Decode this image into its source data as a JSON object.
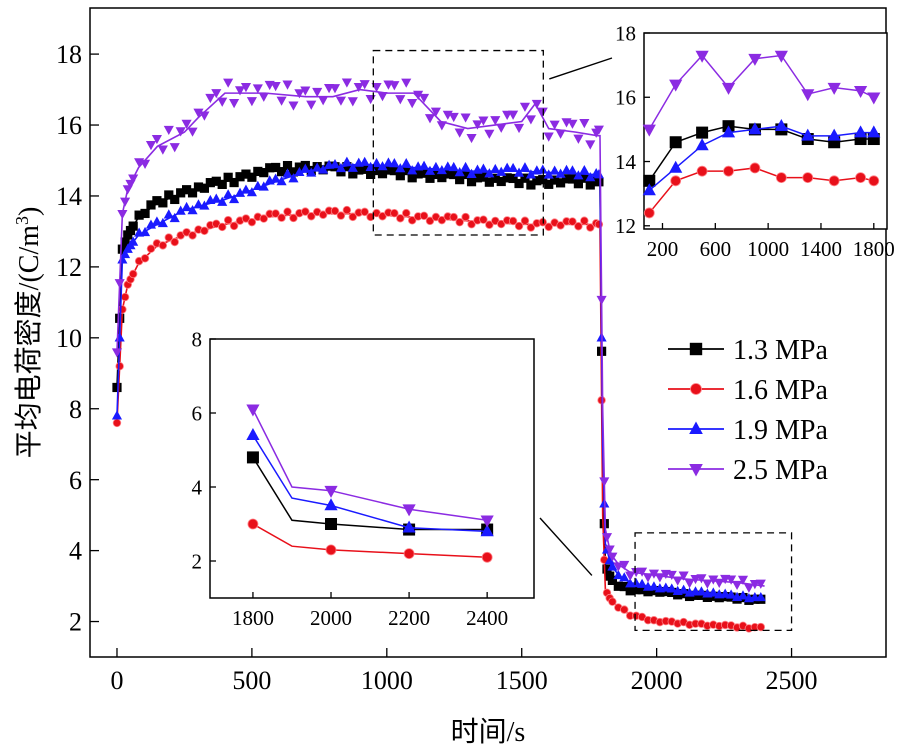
{
  "chart_data": [
    {
      "id": "main",
      "type": "line",
      "xlabel": "时间/s",
      "ylabel_main": "平均电荷密度/(C/m",
      "ylabel_sup": "3",
      "ylabel_close": ")",
      "xlim": [
        -100,
        2850
      ],
      "ylim": [
        1.0,
        19.3
      ],
      "xticks": [
        0,
        500,
        1000,
        1500,
        2000,
        2500
      ],
      "yticks": [
        2,
        4,
        6,
        8,
        10,
        12,
        14,
        16,
        18
      ],
      "legend_position": "right-middle",
      "zoom_boxes": [
        {
          "x": [
            950,
            1580
          ],
          "y": [
            12.9,
            18.1
          ]
        },
        {
          "x": [
            1920,
            2500
          ],
          "y": [
            1.75,
            4.5
          ]
        }
      ],
      "series": [
        {
          "name": "1.3 MPa",
          "color": "#000000",
          "marker": "square",
          "x": [
            0,
            20,
            40,
            80,
            150,
            250,
            400,
            550,
            700,
            900,
            1100,
            1300,
            1500,
            1780,
            1790,
            1800,
            1810,
            1830,
            1860,
            1900,
            2000,
            2100,
            2200,
            2300,
            2400
          ],
          "y": [
            8.6,
            12.5,
            12.9,
            13.4,
            13.8,
            14.1,
            14.4,
            14.7,
            14.8,
            14.7,
            14.6,
            14.5,
            14.4,
            14.4,
            14.3,
            6.5,
            3.6,
            3.2,
            3.0,
            2.9,
            2.85,
            2.75,
            2.7,
            2.65,
            2.6
          ]
        },
        {
          "name": "1.6 MPa",
          "color": "#e8101a",
          "marker": "circle",
          "x": [
            0,
            20,
            40,
            80,
            150,
            250,
            400,
            550,
            700,
            900,
            1100,
            1300,
            1500,
            1780,
            1790,
            1800,
            1810,
            1830,
            1860,
            1900,
            2000,
            2100,
            2200,
            2300,
            2400
          ],
          "y": [
            7.6,
            10.8,
            11.5,
            12.1,
            12.6,
            12.9,
            13.2,
            13.4,
            13.5,
            13.5,
            13.4,
            13.3,
            13.2,
            13.2,
            13.1,
            5.0,
            2.9,
            2.6,
            2.4,
            2.2,
            2.0,
            1.95,
            1.9,
            1.85,
            1.82
          ]
        },
        {
          "name": "1.9 MPa",
          "color": "#1a1aff",
          "marker": "triangle-up",
          "x": [
            0,
            20,
            40,
            80,
            150,
            250,
            400,
            550,
            700,
            900,
            1100,
            1300,
            1500,
            1780,
            1790,
            1800,
            1810,
            1830,
            1860,
            1900,
            2000,
            2100,
            2200,
            2300,
            2400
          ],
          "y": [
            7.8,
            12.2,
            12.5,
            12.9,
            13.2,
            13.6,
            13.9,
            14.3,
            14.7,
            14.9,
            14.8,
            14.7,
            14.7,
            14.6,
            14.5,
            7.0,
            4.2,
            3.6,
            3.3,
            3.1,
            2.95,
            2.85,
            2.8,
            2.7,
            2.65
          ]
        },
        {
          "name": "2.5 MPa",
          "color": "#8b2be2",
          "marker": "triangle-down",
          "x": [
            0,
            20,
            40,
            80,
            150,
            250,
            300,
            400,
            550,
            700,
            800,
            900,
            1000,
            1100,
            1200,
            1300,
            1400,
            1500,
            1550,
            1600,
            1700,
            1780,
            1790,
            1800,
            1810,
            1830,
            1860,
            1900,
            2000,
            2100,
            2200,
            2300,
            2400
          ],
          "y": [
            9.6,
            13.5,
            14.2,
            14.8,
            15.4,
            15.8,
            16.2,
            16.9,
            16.9,
            16.8,
            16.8,
            17.0,
            16.9,
            16.9,
            16.1,
            15.9,
            16.0,
            16.1,
            16.6,
            15.9,
            15.8,
            15.7,
            15.7,
            8.0,
            4.6,
            3.9,
            3.6,
            3.4,
            3.3,
            3.2,
            3.15,
            3.1,
            3.0
          ]
        }
      ]
    },
    {
      "id": "inset-top",
      "type": "line",
      "xlim": [
        60,
        1900
      ],
      "ylim": [
        11.9,
        18.0
      ],
      "xticks": [
        200,
        600,
        1000,
        1400,
        1800
      ],
      "yticks": [
        12,
        14,
        16,
        18
      ],
      "series": [
        {
          "name": "1.3 MPa",
          "color": "#000000",
          "marker": "square",
          "x": [
            100,
            300,
            500,
            700,
            900,
            1100,
            1300,
            1500,
            1700,
            1800
          ],
          "y": [
            13.4,
            14.6,
            14.9,
            15.1,
            15.0,
            15.0,
            14.7,
            14.6,
            14.7,
            14.7
          ]
        },
        {
          "name": "1.6 MPa",
          "color": "#e8101a",
          "marker": "circle",
          "x": [
            100,
            300,
            500,
            700,
            900,
            1100,
            1300,
            1500,
            1700,
            1800
          ],
          "y": [
            12.4,
            13.4,
            13.7,
            13.7,
            13.8,
            13.5,
            13.5,
            13.4,
            13.5,
            13.4
          ]
        },
        {
          "name": "1.9 MPa",
          "color": "#1a1aff",
          "marker": "triangle-up",
          "x": [
            100,
            300,
            500,
            700,
            900,
            1100,
            1300,
            1500,
            1700,
            1800
          ],
          "y": [
            13.1,
            13.8,
            14.5,
            14.9,
            15.0,
            15.1,
            14.8,
            14.8,
            14.9,
            14.9
          ]
        },
        {
          "name": "2.5 MPa",
          "color": "#8b2be2",
          "marker": "triangle-down",
          "x": [
            100,
            300,
            500,
            700,
            900,
            1100,
            1300,
            1500,
            1700,
            1800
          ],
          "y": [
            15.0,
            16.4,
            17.3,
            16.3,
            17.2,
            17.3,
            16.1,
            16.3,
            16.2,
            16.0
          ]
        }
      ]
    },
    {
      "id": "inset-bottom",
      "type": "line",
      "xlim": [
        1690,
        2520
      ],
      "ylim": [
        1.0,
        8.0
      ],
      "xticks": [
        1800,
        2000,
        2200,
        2400
      ],
      "yticks": [
        2,
        4,
        6,
        8
      ],
      "series": [
        {
          "name": "1.3 MPa",
          "color": "#000000",
          "marker": "square",
          "x": [
            1800,
            1900,
            2000,
            2200,
            2400
          ],
          "y": [
            4.8,
            3.1,
            3.0,
            2.85,
            2.85
          ]
        },
        {
          "name": "1.6 MPa",
          "color": "#e8101a",
          "marker": "circle",
          "x": [
            1800,
            1900,
            2000,
            2200,
            2400
          ],
          "y": [
            3.0,
            2.4,
            2.3,
            2.2,
            2.1
          ]
        },
        {
          "name": "1.9 MPa",
          "color": "#1a1aff",
          "marker": "triangle-up",
          "x": [
            1800,
            1900,
            2000,
            2200,
            2400
          ],
          "y": [
            5.4,
            3.7,
            3.5,
            2.9,
            2.8
          ]
        },
        {
          "name": "2.5 MPa",
          "color": "#8b2be2",
          "marker": "triangle-down",
          "x": [
            1800,
            1900,
            2000,
            2200,
            2400
          ],
          "y": [
            6.1,
            4.0,
            3.9,
            3.4,
            3.1
          ]
        }
      ]
    }
  ]
}
